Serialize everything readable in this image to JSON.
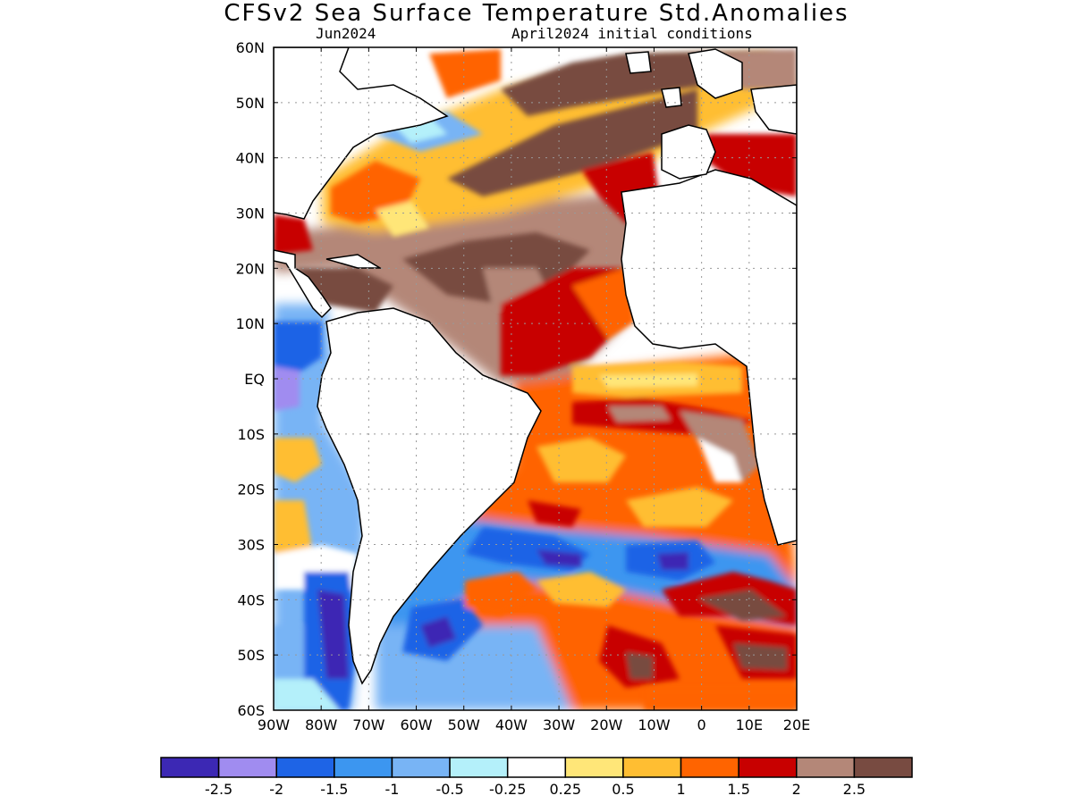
{
  "header": {
    "title": "CFSv2 Sea Surface Temperature Std.Anomalies",
    "target_month": "Jun2024",
    "initial_conditions": "April2024 initial conditions"
  },
  "map": {
    "lon_range": [
      -90,
      20
    ],
    "lat_range": [
      -60,
      60
    ],
    "grid": "dotted",
    "lat_ticks": [
      {
        "lat": 60,
        "label": "60N"
      },
      {
        "lat": 50,
        "label": "50N"
      },
      {
        "lat": 40,
        "label": "40N"
      },
      {
        "lat": 30,
        "label": "30N"
      },
      {
        "lat": 20,
        "label": "20N"
      },
      {
        "lat": 10,
        "label": "10N"
      },
      {
        "lat": 0,
        "label": "EQ"
      },
      {
        "lat": -10,
        "label": "10S"
      },
      {
        "lat": -20,
        "label": "20S"
      },
      {
        "lat": -30,
        "label": "30S"
      },
      {
        "lat": -40,
        "label": "40S"
      },
      {
        "lat": -50,
        "label": "50S"
      },
      {
        "lat": -60,
        "label": "60S"
      }
    ],
    "lon_ticks": [
      {
        "lon": -90,
        "label": "90W"
      },
      {
        "lon": -80,
        "label": "80W"
      },
      {
        "lon": -70,
        "label": "70W"
      },
      {
        "lon": -60,
        "label": "60W"
      },
      {
        "lon": -50,
        "label": "50W"
      },
      {
        "lon": -40,
        "label": "40W"
      },
      {
        "lon": -30,
        "label": "30W"
      },
      {
        "lon": -20,
        "label": "20W"
      },
      {
        "lon": -10,
        "label": "10W"
      },
      {
        "lon": 0,
        "label": "0"
      },
      {
        "lon": 10,
        "label": "10E"
      },
      {
        "lon": 20,
        "label": "20E"
      }
    ]
  },
  "colorbar": {
    "colors": [
      "#3c28b4",
      "#a08cf0",
      "#1e64e6",
      "#3c96f0",
      "#78b4f5",
      "#b4f0fa",
      "#ffffff",
      "#ffe678",
      "#ffbe32",
      "#ff6400",
      "#c80000",
      "#b48778",
      "#784b41"
    ],
    "labels": [
      "-2.5",
      "-2",
      "-1.5",
      "-1",
      "-0.5",
      "-0.25",
      "0.25",
      "0.5",
      "1",
      "1.5",
      "2",
      "2.5"
    ]
  }
}
